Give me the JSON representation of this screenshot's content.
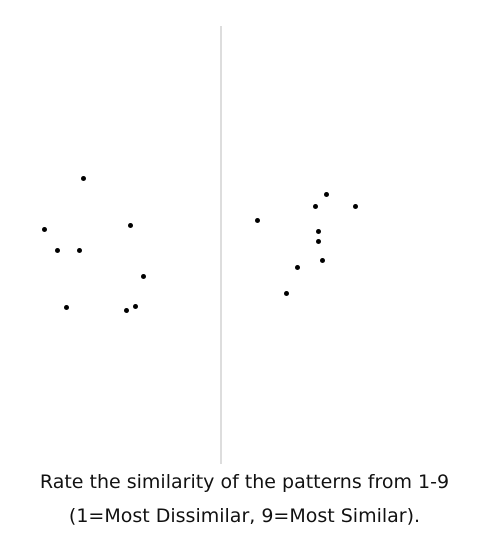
{
  "prompt": {
    "line1": "Rate the similarity of the patterns from 1-9",
    "line2": "(1=Most Dissimilar, 9=Most Similar)."
  },
  "colors": {
    "dot": "#000000",
    "divider": "#dddddd",
    "background": "#ffffff"
  }
}
